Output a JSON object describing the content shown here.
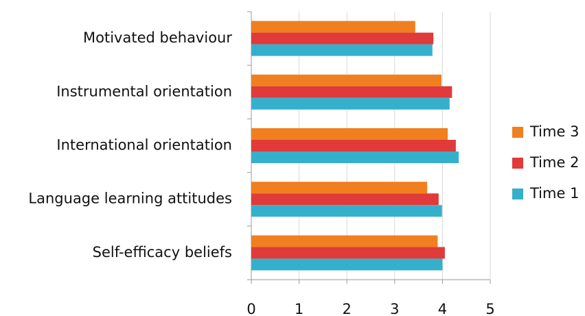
{
  "chart_data": {
    "type": "bar",
    "orientation": "horizontal",
    "categories": [
      "Motivated behaviour",
      "Instrumental orientation",
      "International orientation",
      "Language learning attitudes",
      "Self-efficacy beliefs"
    ],
    "series": [
      {
        "name": "Time 3",
        "color": "#f07f1f",
        "values": [
          3.43,
          3.98,
          4.11,
          3.68,
          3.9
        ]
      },
      {
        "name": "Time 2",
        "color": "#e03a3a",
        "values": [
          3.81,
          4.2,
          4.28,
          3.92,
          4.05
        ]
      },
      {
        "name": "Time 1",
        "color": "#35b0cc",
        "values": [
          3.79,
          4.15,
          4.34,
          3.99,
          4.0
        ]
      }
    ],
    "xlim": [
      0,
      5
    ],
    "xticks": [
      0,
      1,
      2,
      3,
      4,
      5
    ],
    "grid": true,
    "legend": "right"
  }
}
